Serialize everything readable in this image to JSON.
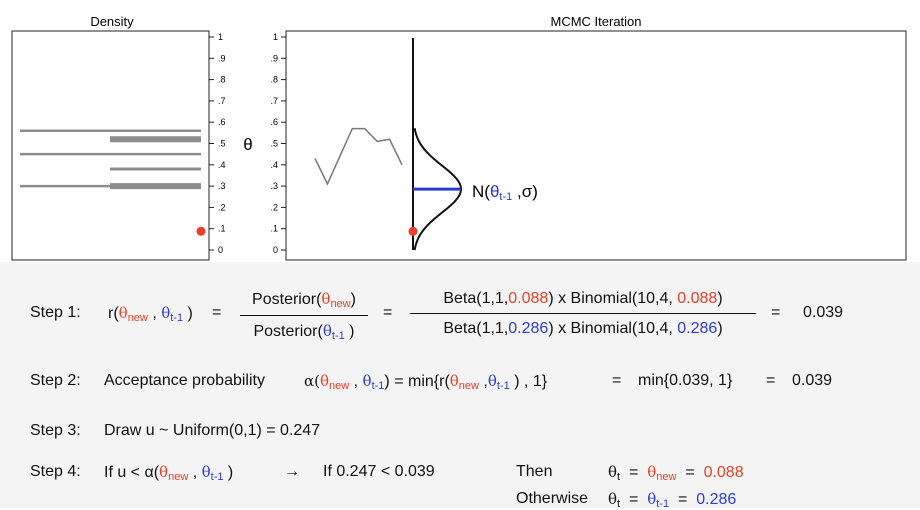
{
  "plots": {
    "density_title": "Density",
    "mcmc_title": "MCMC Iteration",
    "theta_axis_label": "θ",
    "ticks": [
      "0",
      ".1",
      ".2",
      ".3",
      ".4",
      ".5",
      ".6",
      ".7",
      ".8",
      ".9",
      "1"
    ],
    "proposal_label": {
      "prefix": "N(",
      "theta": "θ",
      "sub": "t-1",
      "sigma": " ,σ)"
    }
  },
  "chart_data": [
    {
      "type": "bar",
      "title": "Density",
      "orientation": "horizontal",
      "ylim": [
        0,
        1
      ],
      "thin_lines_at": [
        0.3,
        0.45,
        0.56
      ],
      "thick_bars_at": [
        0.3,
        0.52
      ],
      "medium_lines_at": [
        0.38
      ],
      "current_point": 0.088,
      "point_color": "#e8402a"
    },
    {
      "type": "line",
      "title": "MCMC Iteration",
      "ylim": [
        0,
        1
      ],
      "trace_values": [
        0.43,
        0.31,
        0.44,
        0.57,
        0.57,
        0.51,
        0.52,
        0.4
      ],
      "proposal_center": 0.286,
      "proposal_sigma": 0.11,
      "current_point": 0.088,
      "point_color": "#e8402a",
      "center_line_color": "#2b3cd0"
    }
  ],
  "steps": {
    "step1": {
      "label": "Step 1:",
      "r": "r(",
      "theta_new": "θ",
      "sub_new": "new",
      "comma": " , ",
      "theta_prev": "θ",
      "sub_prev": "t-1",
      "close": " )",
      "eq1": "=",
      "post_num": "Posterior(",
      "post_den": "Posterior(",
      "eq2": "=",
      "beta_prefix": "Beta(1,1,",
      "beta_num_val": "0.088",
      "binom_mid": ") x Binomial(10,4, ",
      "binom_num_val": "0.088",
      "close_paren": ")",
      "beta_den_val": "0.286",
      "binom_den_val": "0.286",
      "eq3": "=",
      "result": "0.039"
    },
    "step2": {
      "label": "Step 2:",
      "text1": "Acceptance probability",
      "alpha": "α(",
      "eq_min": ") =  min{r(",
      "tail": " ) , 1}",
      "eq_a": "=",
      "min_text": "min{0.039, 1}",
      "eq_b": "=",
      "result": "0.039"
    },
    "step3": {
      "label": "Step 3:",
      "text": "Draw u ~ Uniform(0,1)  =  0.247"
    },
    "step4": {
      "label": "Step 4:",
      "if_text": "If   u < α(",
      "close": " )",
      "arrow": "→",
      "if2": "If  0.247 < 0.039",
      "then": "Then",
      "otherwise": "Otherwise",
      "theta": "θ",
      "sub_t": "t",
      "eq": "=",
      "new_val": "0.088",
      "prev_val": "0.286"
    }
  }
}
